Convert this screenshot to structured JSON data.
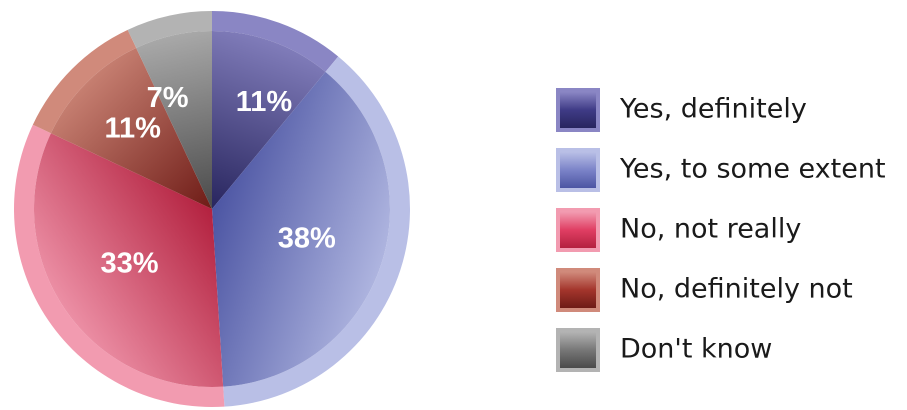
{
  "chart_data": {
    "type": "pie",
    "title": "",
    "slices": [
      {
        "label": "Yes, definitely",
        "value": 11,
        "value_label": "11%",
        "color": "#3f3b86",
        "light": "#8a86c4",
        "dark": "#28255e"
      },
      {
        "label": "Yes, to some extent",
        "value": 38,
        "value_label": "38%",
        "color": "#7b83c8",
        "light": "#b9bfe6",
        "dark": "#4c55a3"
      },
      {
        "label": "No, not really",
        "value": 33,
        "value_label": "33%",
        "color": "#e03e63",
        "light": "#f29bb0",
        "dark": "#b3213f"
      },
      {
        "label": "No, definitely not",
        "value": 11,
        "value_label": "11%",
        "color": "#a3352c",
        "light": "#d08a7b",
        "dark": "#6e1b16"
      },
      {
        "label": "Don't know",
        "value": 7,
        "value_label": "7%",
        "color": "#777777",
        "light": "#b3b3b3",
        "dark": "#4a4a4a"
      }
    ],
    "start_angle_deg": 0,
    "direction": "clockwise",
    "legend_position": "right"
  }
}
